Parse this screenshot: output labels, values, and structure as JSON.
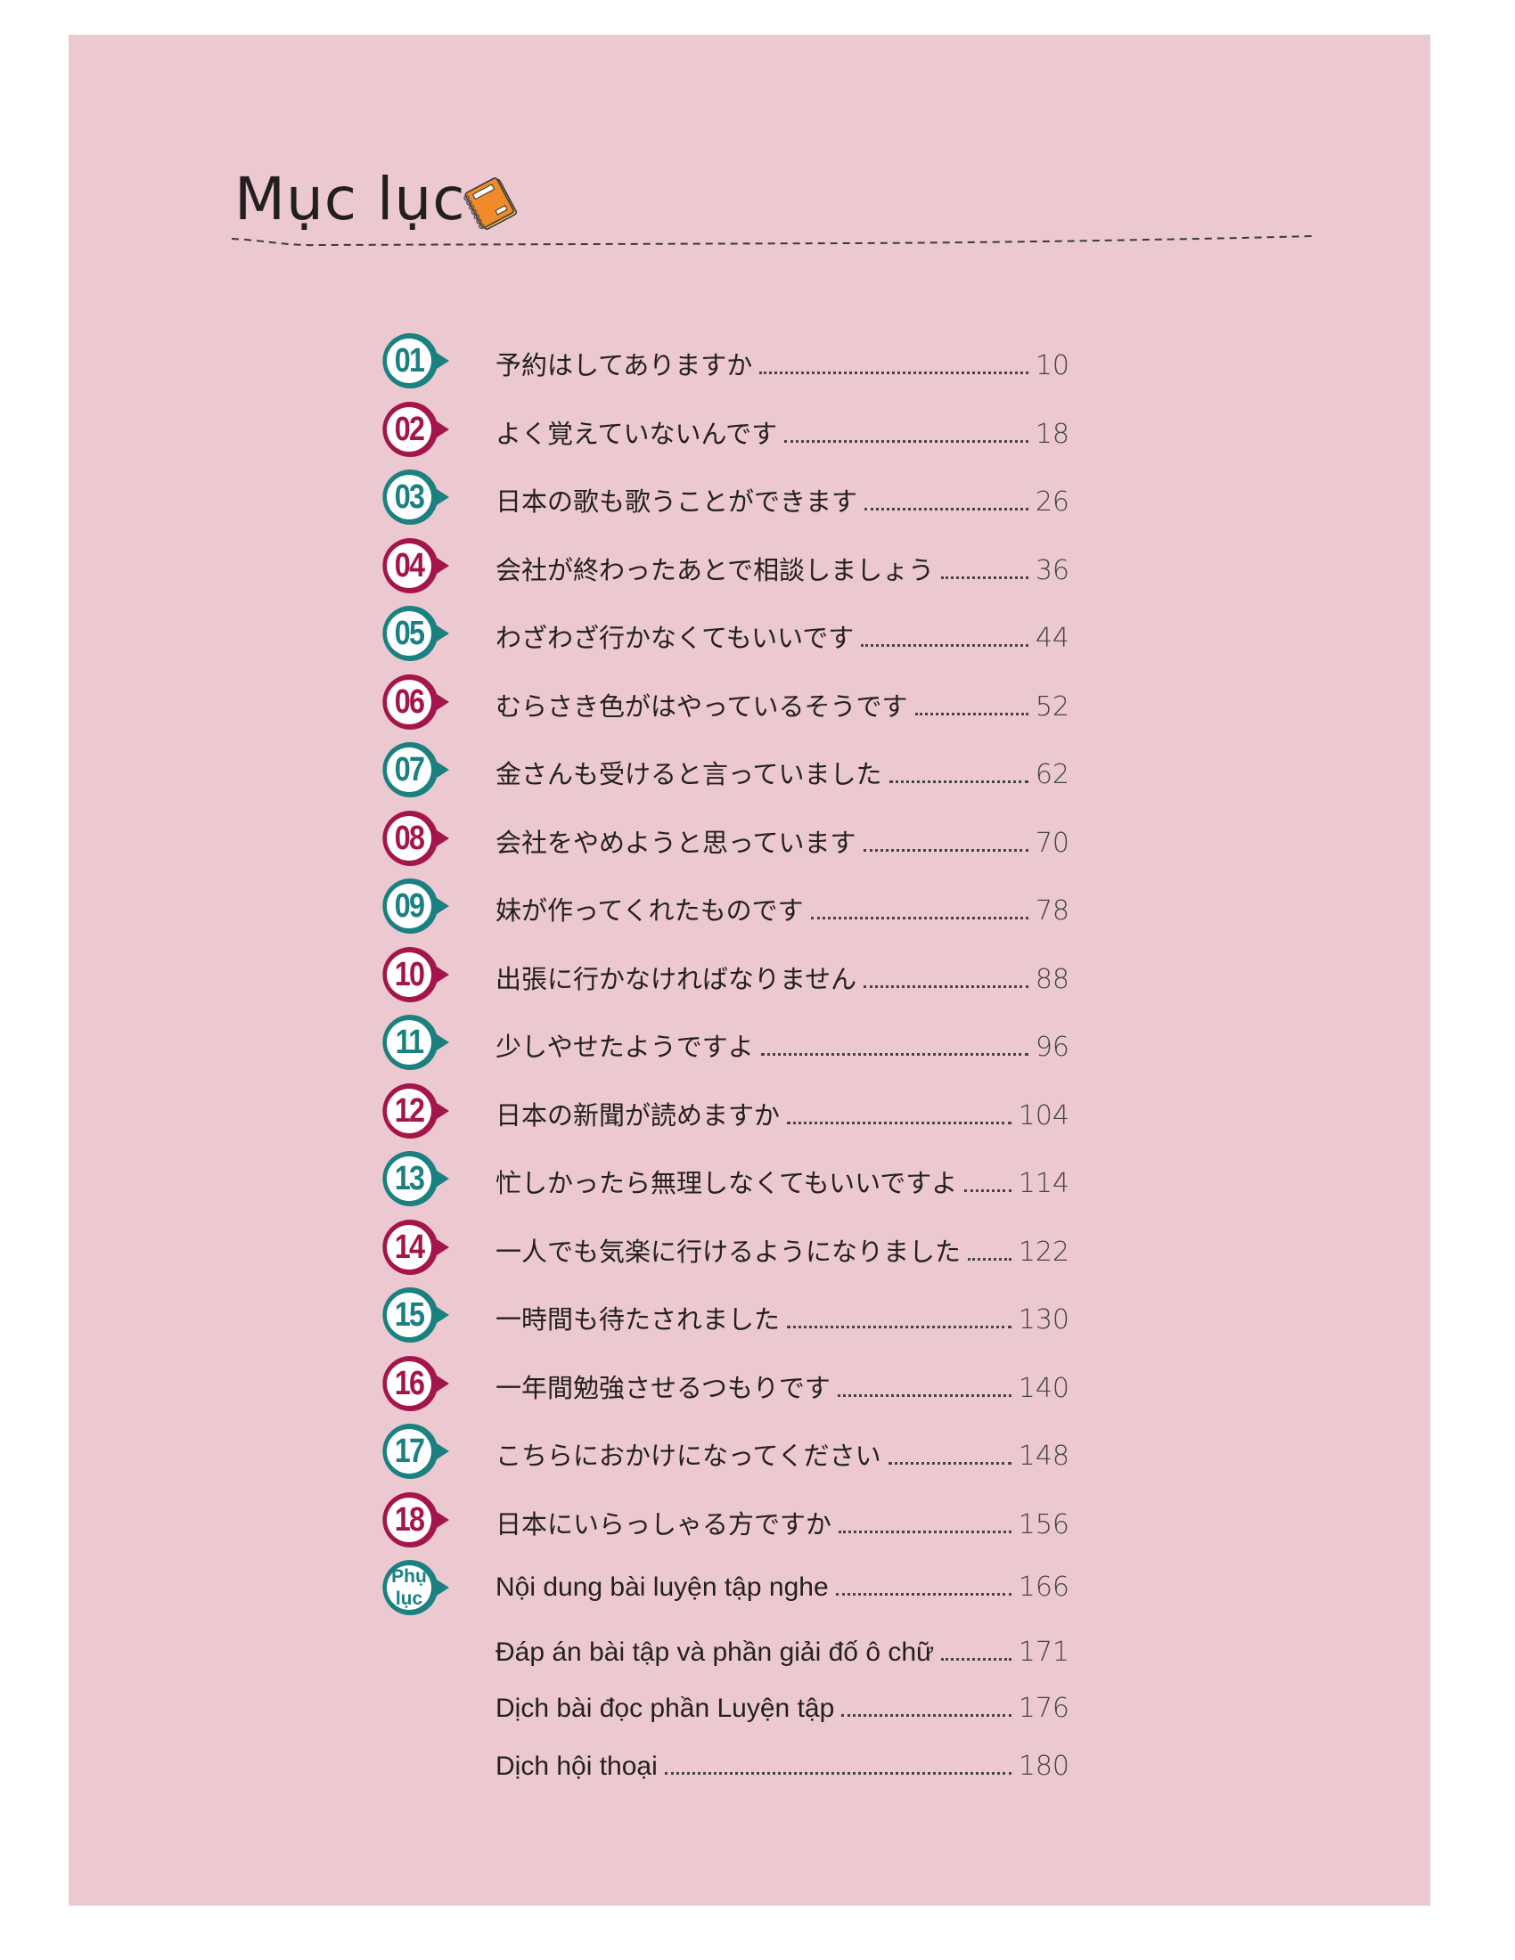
{
  "title": "Mục lục",
  "title_icon": "notebook-icon",
  "colors": {
    "background": "#ecc9d0",
    "teal": "#1b8080",
    "crimson": "#a3154b"
  },
  "lessons": [
    {
      "num": "01",
      "title": "予約はしてありますか",
      "page": "10"
    },
    {
      "num": "02",
      "title": "よく覚えていないんです",
      "page": "18"
    },
    {
      "num": "03",
      "title": "日本の歌も歌うことができます",
      "page": "26"
    },
    {
      "num": "04",
      "title": "会社が終わったあとで相談しましょう",
      "page": "36"
    },
    {
      "num": "05",
      "title": "わざわざ行かなくてもいいです",
      "page": "44"
    },
    {
      "num": "06",
      "title": "むらさき色がはやっているそうです",
      "page": "52"
    },
    {
      "num": "07",
      "title": "金さんも受けると言っていました",
      "page": "62"
    },
    {
      "num": "08",
      "title": "会社をやめようと思っています",
      "page": "70"
    },
    {
      "num": "09",
      "title": "妹が作ってくれたものです",
      "page": "78"
    },
    {
      "num": "10",
      "title": "出張に行かなければなりません",
      "page": "88"
    },
    {
      "num": "11",
      "title": "少しやせたようですよ",
      "page": "96"
    },
    {
      "num": "12",
      "title": "日本の新聞が読めますか",
      "page": "104"
    },
    {
      "num": "13",
      "title": "忙しかったら無理しなくてもいいですよ",
      "page": "114"
    },
    {
      "num": "14",
      "title": "一人でも気楽に行けるようになりました",
      "page": "122"
    },
    {
      "num": "15",
      "title": "一時間も待たされました",
      "page": "130"
    },
    {
      "num": "16",
      "title": "一年間勉強させるつもりです",
      "page": "140"
    },
    {
      "num": "17",
      "title": "こちらにおかけになってください",
      "page": "148"
    },
    {
      "num": "18",
      "title": "日本にいらっしゃる方ですか",
      "page": "156"
    }
  ],
  "appendix": {
    "badge_line1": "Phụ",
    "badge_line2": "lục",
    "items": [
      {
        "title": "Nội dung bài luyện tập nghe",
        "page": "166"
      },
      {
        "title": "Đáp án bài tập và phần giải đố ô chữ",
        "page": "171"
      },
      {
        "title": "Dịch bài đọc phần Luyện tập",
        "page": "176"
      },
      {
        "title": "Dịch hội thoại",
        "page": "180"
      }
    ]
  }
}
